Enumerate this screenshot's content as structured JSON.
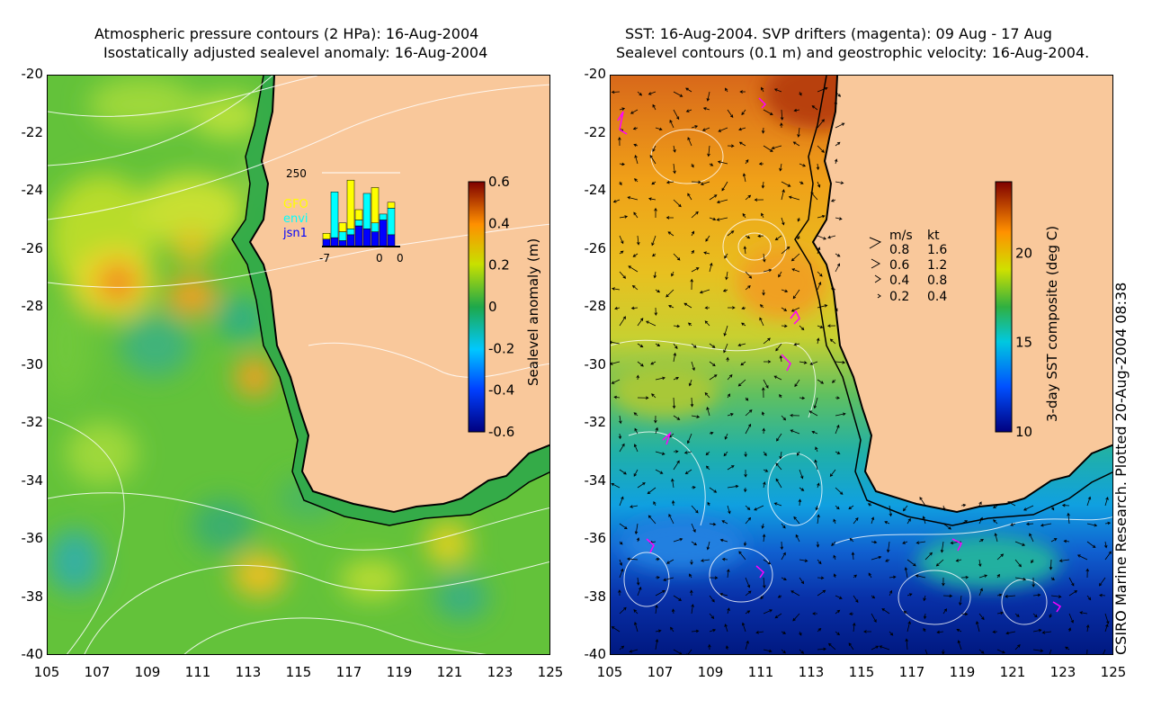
{
  "left_panel": {
    "title_line1": "Atmospheric pressure contours (2 HPa): 16-Aug-2004",
    "title_line2": "Isostatically adjusted sealevel anomaly: 16-Aug-2004",
    "colorbar": {
      "label": "Sealevel anomaly (m)",
      "ticks": [
        "0.6",
        "0.4",
        "0.2",
        "0",
        "-0.2",
        "-0.4",
        "-0.6"
      ],
      "range": [
        -0.6,
        0.6
      ]
    },
    "inset": {
      "ymax_label": "250",
      "legend": [
        {
          "name": "GFO",
          "color": "#ffff00"
        },
        {
          "name": "envi",
          "color": "#00ffff"
        },
        {
          "name": "jsn1",
          "color": "#0000ff"
        }
      ],
      "xticks": [
        "-7",
        "0",
        "0"
      ],
      "bars": [
        {
          "jsn1": 25,
          "envi": 0,
          "gfo": 20
        },
        {
          "jsn1": 30,
          "envi": 155,
          "gfo": 0
        },
        {
          "jsn1": 20,
          "envi": 30,
          "gfo": 30
        },
        {
          "jsn1": 40,
          "envi": 20,
          "gfo": 165
        },
        {
          "jsn1": 70,
          "envi": 20,
          "gfo": 35
        },
        {
          "jsn1": 60,
          "envi": 120,
          "gfo": 0
        },
        {
          "jsn1": 50,
          "envi": 30,
          "gfo": 120
        },
        {
          "jsn1": 90,
          "envi": 20,
          "gfo": 0
        },
        {
          "jsn1": 40,
          "envi": 90,
          "gfo": 20
        }
      ]
    }
  },
  "right_panel": {
    "title_line1": "SST: 16-Aug-2004. SVP drifters (magenta): 09 Aug - 17 Aug",
    "title_line2": "Sealevel contours (0.1 m) and geostrophic velocity: 16-Aug-2004.",
    "colorbar": {
      "label": "3-day SST composite (deg C)",
      "ticks": [
        "20",
        "15",
        "10"
      ],
      "range": [
        10,
        24
      ]
    },
    "velocity_legend": {
      "header_ms": "m/s",
      "header_kt": "kt",
      "rows": [
        {
          "ms": "0.8",
          "kt": "1.6"
        },
        {
          "ms": "0.6",
          "kt": "1.2"
        },
        {
          "ms": "0.4",
          "kt": "0.8"
        },
        {
          "ms": "0.2",
          "kt": "0.4"
        }
      ]
    }
  },
  "axes": {
    "y_ticks": [
      "-20",
      "-22",
      "-24",
      "-26",
      "-28",
      "-30",
      "-32",
      "-34",
      "-36",
      "-38",
      "-40"
    ],
    "x_ticks": [
      "105",
      "107",
      "109",
      "111",
      "113",
      "115",
      "117",
      "119",
      "121",
      "123",
      "125"
    ],
    "lat_range": [
      -40,
      -20
    ],
    "lon_range": [
      105,
      125
    ]
  },
  "credit": "CSIRO Marine Research. Plotted 20-Aug-2004 08:38",
  "colors": {
    "land": "#f9c89b",
    "shelf_green": "#2fa84a",
    "coast_line": "#000000",
    "drifter": "#ff00ff"
  }
}
